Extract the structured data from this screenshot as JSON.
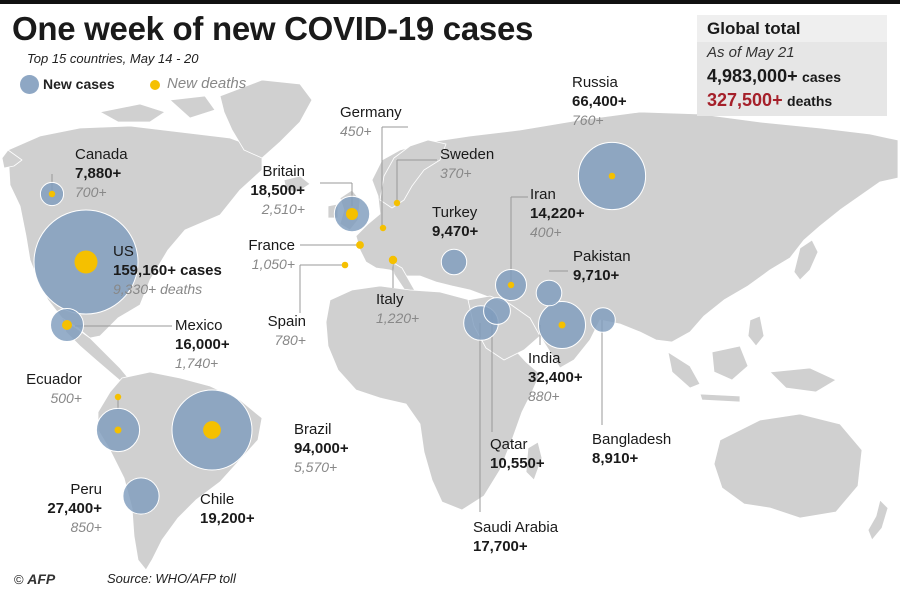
{
  "title": "One week of new COVID-19 cases",
  "subtitle": "Top 15 countries, May 14 - 20",
  "legend": {
    "cases": "New cases",
    "deaths": "New deaths"
  },
  "global": {
    "heading": "Global total",
    "asof": "As of May 21",
    "cases_value": "4,983,000+",
    "cases_unit": "cases",
    "deaths_value": "327,500+",
    "deaths_unit": "deaths"
  },
  "countries": [
    {
      "name": "US",
      "cases": "159,160+ cases",
      "deaths": "9,330+ deaths",
      "cases_n": 159160,
      "deaths_n": 9330
    },
    {
      "name": "Brazil",
      "cases": "94,000+",
      "deaths": "5,570+",
      "cases_n": 94000,
      "deaths_n": 5570
    },
    {
      "name": "Russia",
      "cases": "66,400+",
      "deaths": "760+",
      "cases_n": 66400,
      "deaths_n": 760
    },
    {
      "name": "India",
      "cases": "32,400+",
      "deaths": "880+",
      "cases_n": 32400,
      "deaths_n": 880
    },
    {
      "name": "Peru",
      "cases": "27,400+",
      "deaths": "850+",
      "cases_n": 27400,
      "deaths_n": 850
    },
    {
      "name": "Chile",
      "cases": "19,200+",
      "deaths": "",
      "cases_n": 19200,
      "deaths_n": null
    },
    {
      "name": "Britain",
      "cases": "18,500+",
      "deaths": "2,510+",
      "cases_n": 18500,
      "deaths_n": 2510
    },
    {
      "name": "Saudi Arabia",
      "cases": "17,700+",
      "deaths": "",
      "cases_n": 17700,
      "deaths_n": null
    },
    {
      "name": "Mexico",
      "cases": "16,000+",
      "deaths": "1,740+",
      "cases_n": 16000,
      "deaths_n": 1740
    },
    {
      "name": "Iran",
      "cases": "14,220+",
      "deaths": "400+",
      "cases_n": 14220,
      "deaths_n": 400
    },
    {
      "name": "Qatar",
      "cases": "10,550+",
      "deaths": "",
      "cases_n": 10550,
      "deaths_n": null
    },
    {
      "name": "Pakistan",
      "cases": "9,710+",
      "deaths": "",
      "cases_n": 9710,
      "deaths_n": null
    },
    {
      "name": "Turkey",
      "cases": "9,470+",
      "deaths": "",
      "cases_n": 9470,
      "deaths_n": null
    },
    {
      "name": "Bangladesh",
      "cases": "8,910+",
      "deaths": "",
      "cases_n": 8910,
      "deaths_n": null
    },
    {
      "name": "Canada",
      "cases": "7,880+",
      "deaths": "700+",
      "cases_n": 7880,
      "deaths_n": 700
    },
    {
      "name": "Germany",
      "cases": "",
      "deaths": "450+",
      "cases_n": null,
      "deaths_n": 450
    },
    {
      "name": "Sweden",
      "cases": "",
      "deaths": "370+",
      "cases_n": null,
      "deaths_n": 370
    },
    {
      "name": "France",
      "cases": "",
      "deaths": "1,050+",
      "cases_n": null,
      "deaths_n": 1050
    },
    {
      "name": "Spain",
      "cases": "",
      "deaths": "780+",
      "cases_n": null,
      "deaths_n": 780
    },
    {
      "name": "Italy",
      "cases": "",
      "deaths": "1,220+",
      "cases_n": null,
      "deaths_n": 1220
    },
    {
      "name": "Ecuador",
      "cases": "",
      "deaths": "500+",
      "cases_n": null,
      "deaths_n": 500
    }
  ],
  "footer": {
    "copyright": "©",
    "agency": "AFP",
    "source": "Source: WHO/AFP toll"
  },
  "colors": {
    "land": "#d0d0d0",
    "cases_bubble": "#7f9cbd",
    "deaths_dot": "#f5c000",
    "deaths_text": "#a5202a",
    "leader": "#999999"
  }
}
